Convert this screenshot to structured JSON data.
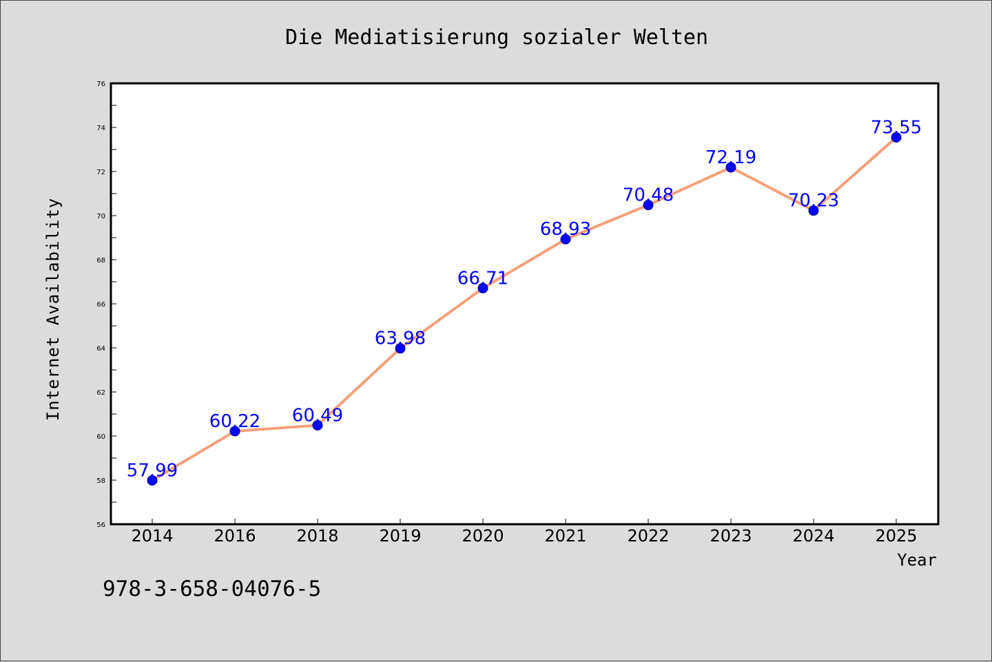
{
  "chart_data": {
    "type": "line",
    "title": "Die Mediatisierung sozialer Welten",
    "xlabel": "Year",
    "ylabel": "Internet Availability",
    "categories": [
      "2014",
      "2016",
      "2018",
      "2019",
      "2020",
      "2021",
      "2022",
      "2023",
      "2024",
      "2025"
    ],
    "values": [
      57.99,
      60.22,
      60.49,
      63.98,
      66.71,
      68.93,
      70.48,
      72.19,
      70.23,
      73.55
    ],
    "data_labels": [
      "57.99",
      "60.22",
      "60.49",
      "63.98",
      "66.71",
      "68.93",
      "70.48",
      "72.19",
      "70.23",
      "73.55"
    ],
    "ylim": [
      56,
      76
    ],
    "yticks": [
      56,
      58,
      60,
      62,
      64,
      66,
      68,
      70,
      72,
      74,
      76
    ],
    "grid": false,
    "legend": "none",
    "colors": {
      "line": "#f4a07a",
      "marker": "#0000ff",
      "data_label": "#0000ff",
      "background": "#dcdcdc",
      "plot_area": "#ffffff"
    }
  },
  "footer": {
    "isbn": "978-3-658-04076-5"
  }
}
